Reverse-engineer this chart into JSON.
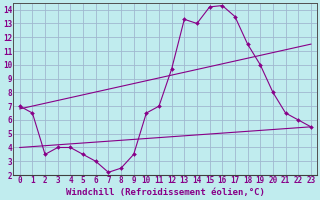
{
  "xlabel": "Windchill (Refroidissement éolien,°C)",
  "background_color": "#c0ecee",
  "grid_color": "#a0b8d0",
  "line_color": "#880088",
  "xlim": [
    -0.5,
    23.5
  ],
  "ylim": [
    2,
    14.5
  ],
  "xticks": [
    0,
    1,
    2,
    3,
    4,
    5,
    6,
    7,
    8,
    9,
    10,
    11,
    12,
    13,
    14,
    15,
    16,
    17,
    18,
    19,
    20,
    21,
    22,
    23
  ],
  "yticks": [
    2,
    3,
    4,
    5,
    6,
    7,
    8,
    9,
    10,
    11,
    12,
    13,
    14
  ],
  "line1_x": [
    0,
    1,
    2,
    3,
    4,
    5,
    6,
    7,
    8,
    9,
    10,
    11,
    12,
    13,
    14,
    15,
    16,
    17,
    18,
    19,
    20,
    21,
    22,
    23
  ],
  "line1_y": [
    7.0,
    6.5,
    3.5,
    4.0,
    4.0,
    3.5,
    3.0,
    2.2,
    2.5,
    3.5,
    6.5,
    7.0,
    9.7,
    13.3,
    13.0,
    14.2,
    14.3,
    13.5,
    11.5,
    10.0,
    8.0,
    6.5,
    6.0,
    5.5
  ],
  "line2_x": [
    0,
    23
  ],
  "line2_y": [
    6.8,
    11.5
  ],
  "line3_x": [
    0,
    23
  ],
  "line3_y": [
    4.0,
    5.5
  ],
  "tick_fontsize": 5.5,
  "label_fontsize": 6.5
}
